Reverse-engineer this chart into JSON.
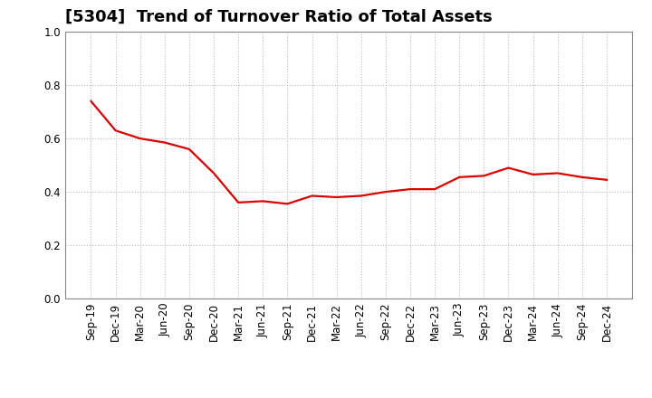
{
  "title": "[5304]  Trend of Turnover Ratio of Total Assets",
  "x_labels": [
    "Sep-19",
    "Dec-19",
    "Mar-20",
    "Jun-20",
    "Sep-20",
    "Dec-20",
    "Mar-21",
    "Jun-21",
    "Sep-21",
    "Dec-21",
    "Mar-22",
    "Jun-22",
    "Sep-22",
    "Dec-22",
    "Mar-23",
    "Jun-23",
    "Sep-23",
    "Dec-23",
    "Mar-24",
    "Jun-24",
    "Sep-24",
    "Dec-24"
  ],
  "y_values": [
    0.74,
    0.63,
    0.6,
    0.585,
    0.56,
    0.47,
    0.36,
    0.365,
    0.355,
    0.385,
    0.38,
    0.385,
    0.4,
    0.41,
    0.41,
    0.455,
    0.46,
    0.49,
    0.465,
    0.47,
    0.455,
    0.445
  ],
  "line_color": "#dd0000",
  "line_width": 1.6,
  "ylim": [
    0.0,
    1.0
  ],
  "yticks": [
    0.0,
    0.2,
    0.4,
    0.6,
    0.8,
    1.0
  ],
  "background_color": "#ffffff",
  "grid_color": "#bbbbbb",
  "title_fontsize": 13,
  "tick_fontsize": 8.5
}
